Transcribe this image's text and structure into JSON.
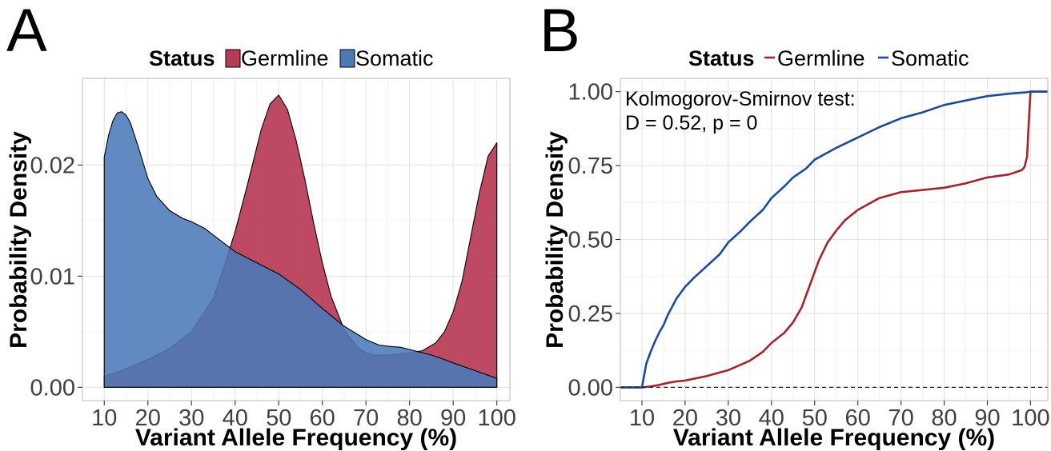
{
  "chart_data": [
    {
      "panel": "A",
      "type": "area",
      "legend_title": "Status",
      "legend_position": "top",
      "xlabel": "Variant Allele Frequency (%)",
      "ylabel": "Probability Density",
      "xlim": [
        5,
        103
      ],
      "ylim": [
        -0.0012,
        0.0278
      ],
      "xticks": [
        "10",
        "20",
        "30",
        "40",
        "50",
        "60",
        "70",
        "80",
        "90",
        "100"
      ],
      "yticks": [
        "0.00",
        "0.01",
        "0.02"
      ],
      "grid": true,
      "series": [
        {
          "name": "Germline",
          "color": "#b83a55",
          "x": [
            10,
            14,
            20,
            25,
            30,
            35,
            38,
            40,
            43,
            46,
            48,
            50,
            52,
            54,
            56,
            58,
            60,
            62,
            65,
            68,
            70,
            72,
            75,
            78,
            80,
            83,
            86,
            88,
            90,
            92,
            94,
            96,
            98,
            100
          ],
          "values": [
            0.001,
            0.0015,
            0.0025,
            0.0035,
            0.005,
            0.008,
            0.0115,
            0.014,
            0.0185,
            0.0232,
            0.0255,
            0.0263,
            0.025,
            0.0222,
            0.0187,
            0.0148,
            0.0112,
            0.0082,
            0.0052,
            0.0036,
            0.0031,
            0.0029,
            0.0029,
            0.003,
            0.0031,
            0.0033,
            0.004,
            0.005,
            0.0068,
            0.0095,
            0.0135,
            0.0175,
            0.0208,
            0.022
          ]
        },
        {
          "name": "Somatic",
          "color": "#4a7ab8",
          "x": [
            10,
            11,
            12,
            13,
            14,
            15,
            16,
            18,
            20,
            22,
            25,
            28,
            30,
            33,
            35,
            38,
            40,
            45,
            50,
            55,
            60,
            65,
            70,
            73,
            75,
            78,
            80,
            82,
            85,
            88,
            90,
            95,
            100
          ],
          "values": [
            0.0207,
            0.0227,
            0.024,
            0.0247,
            0.0248,
            0.0245,
            0.0238,
            0.0214,
            0.0188,
            0.0172,
            0.0159,
            0.0152,
            0.0149,
            0.0143,
            0.0137,
            0.0128,
            0.0122,
            0.0112,
            0.0102,
            0.0088,
            0.0071,
            0.0055,
            0.0043,
            0.0038,
            0.0037,
            0.0036,
            0.0034,
            0.0032,
            0.0029,
            0.0025,
            0.0022,
            0.0015,
            0.0008
          ]
        }
      ]
    },
    {
      "panel": "B",
      "type": "line",
      "legend_title": "Status",
      "legend_position": "top",
      "xlabel": "Variant Allele Frequency (%)",
      "ylabel": "Probability Density",
      "xlim": [
        5,
        104
      ],
      "ylim": [
        -0.045,
        1.045
      ],
      "xticks": [
        "10",
        "20",
        "30",
        "40",
        "50",
        "60",
        "70",
        "80",
        "90",
        "100"
      ],
      "yticks": [
        "0.00",
        "0.25",
        "0.50",
        "0.75",
        "1.00"
      ],
      "grid": true,
      "reference_line_y": 0,
      "annotation": [
        "Kolmogorov-Smirnov test:",
        "D = 0.52, p = 0"
      ],
      "series": [
        {
          "name": "Germline",
          "color": "#a8232b",
          "x": [
            5,
            10,
            12,
            14,
            16,
            18,
            20,
            25,
            30,
            35,
            38,
            40,
            43,
            45,
            47,
            49,
            50,
            51,
            52,
            53,
            55,
            57,
            60,
            65,
            70,
            80,
            85,
            90,
            95,
            97,
            98,
            98.6,
            99.2,
            99.6,
            100,
            104
          ],
          "values": [
            0,
            0,
            0.003,
            0.008,
            0.015,
            0.02,
            0.023,
            0.038,
            0.058,
            0.09,
            0.12,
            0.15,
            0.185,
            0.22,
            0.27,
            0.35,
            0.39,
            0.43,
            0.46,
            0.49,
            0.53,
            0.565,
            0.6,
            0.64,
            0.66,
            0.675,
            0.69,
            0.71,
            0.72,
            0.73,
            0.735,
            0.745,
            0.78,
            0.9,
            1.0,
            1.0
          ]
        },
        {
          "name": "Somatic",
          "color": "#1c4a9c",
          "x": [
            5,
            10,
            10.5,
            11,
            12,
            13,
            14,
            15,
            16,
            18,
            20,
            22,
            25,
            28,
            30,
            33,
            35,
            38,
            40,
            43,
            45,
            48,
            50,
            55,
            60,
            65,
            70,
            75,
            80,
            85,
            90,
            95,
            99,
            100,
            104
          ],
          "values": [
            0,
            0,
            0.04,
            0.08,
            0.12,
            0.155,
            0.185,
            0.21,
            0.245,
            0.3,
            0.34,
            0.37,
            0.41,
            0.45,
            0.49,
            0.53,
            0.56,
            0.6,
            0.64,
            0.68,
            0.71,
            0.74,
            0.77,
            0.81,
            0.845,
            0.88,
            0.91,
            0.93,
            0.955,
            0.97,
            0.985,
            0.993,
            0.998,
            1.0,
            1.0
          ]
        }
      ]
    }
  ]
}
